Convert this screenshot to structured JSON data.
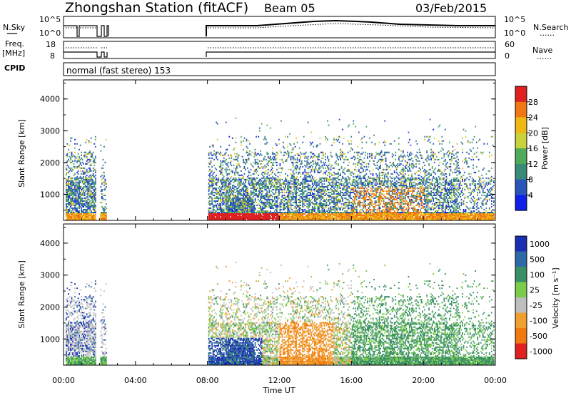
{
  "header": {
    "station": "Zhongshan Station (fitACF)",
    "beam": "Beam 05",
    "date": "03/Feb/2015"
  },
  "top_panels": {
    "nsky_label": "N.Sky",
    "nsky_ticks": [
      "10^5",
      "10^0"
    ],
    "nsearch_label": "N.Search",
    "nsearch_ticks": [
      "10^5",
      "10^0"
    ],
    "freq_label_1": "Freq.",
    "freq_label_2": "[MHz]",
    "freq_ticks": [
      "18",
      "8"
    ],
    "nave_label": "Nave",
    "nave_ticks": [
      "60",
      "0"
    ],
    "cpid_label": "CPID",
    "cpid_value": "normal (fast stereo) 153",
    "series_dotted": "......"
  },
  "chart_data": [
    {
      "type": "heatmap",
      "title": "",
      "ylabel": "Slant Range [km]",
      "xlabel": "",
      "ylim": [
        180,
        4600
      ],
      "yticks": [
        "1000",
        "2000",
        "3000",
        "4000"
      ],
      "colorbar_label": "Power [dB]",
      "colorbar_ticks": [
        "4",
        "8",
        "12",
        "16",
        "20",
        "24",
        "28"
      ],
      "colors": [
        "#1020e6",
        "#2a55b8",
        "#3a8a78",
        "#4faa5a",
        "#c8d23c",
        "#f0b814",
        "#f07814",
        "#e02020"
      ],
      "data_gaps_ut_hours": [
        [
          1.8,
          2.0
        ],
        [
          2.4,
          8.0
        ]
      ]
    },
    {
      "type": "heatmap",
      "title": "",
      "ylabel": "Slant Range [km]",
      "xlabel": "Time UT",
      "ylim": [
        180,
        4600
      ],
      "yticks": [
        "1000",
        "2000",
        "3000",
        "4000"
      ],
      "xticks": [
        "00:00",
        "04:00",
        "08:00",
        "12:00",
        "16:00",
        "20:00",
        "00:00"
      ],
      "colorbar_label": "Velocity [m s⁻¹]",
      "colorbar_ticks": [
        "1000",
        "500",
        "100",
        "25",
        "-25",
        "-100",
        "-500",
        "-1000"
      ],
      "colors": [
        "#1a2eb4",
        "#2e6aa8",
        "#3a8f66",
        "#7acc4a",
        "#bebebe",
        "#f0a030",
        "#f07a10",
        "#e02020"
      ],
      "data_gaps_ut_hours": [
        [
          1.8,
          2.0
        ],
        [
          2.4,
          8.0
        ]
      ]
    }
  ]
}
